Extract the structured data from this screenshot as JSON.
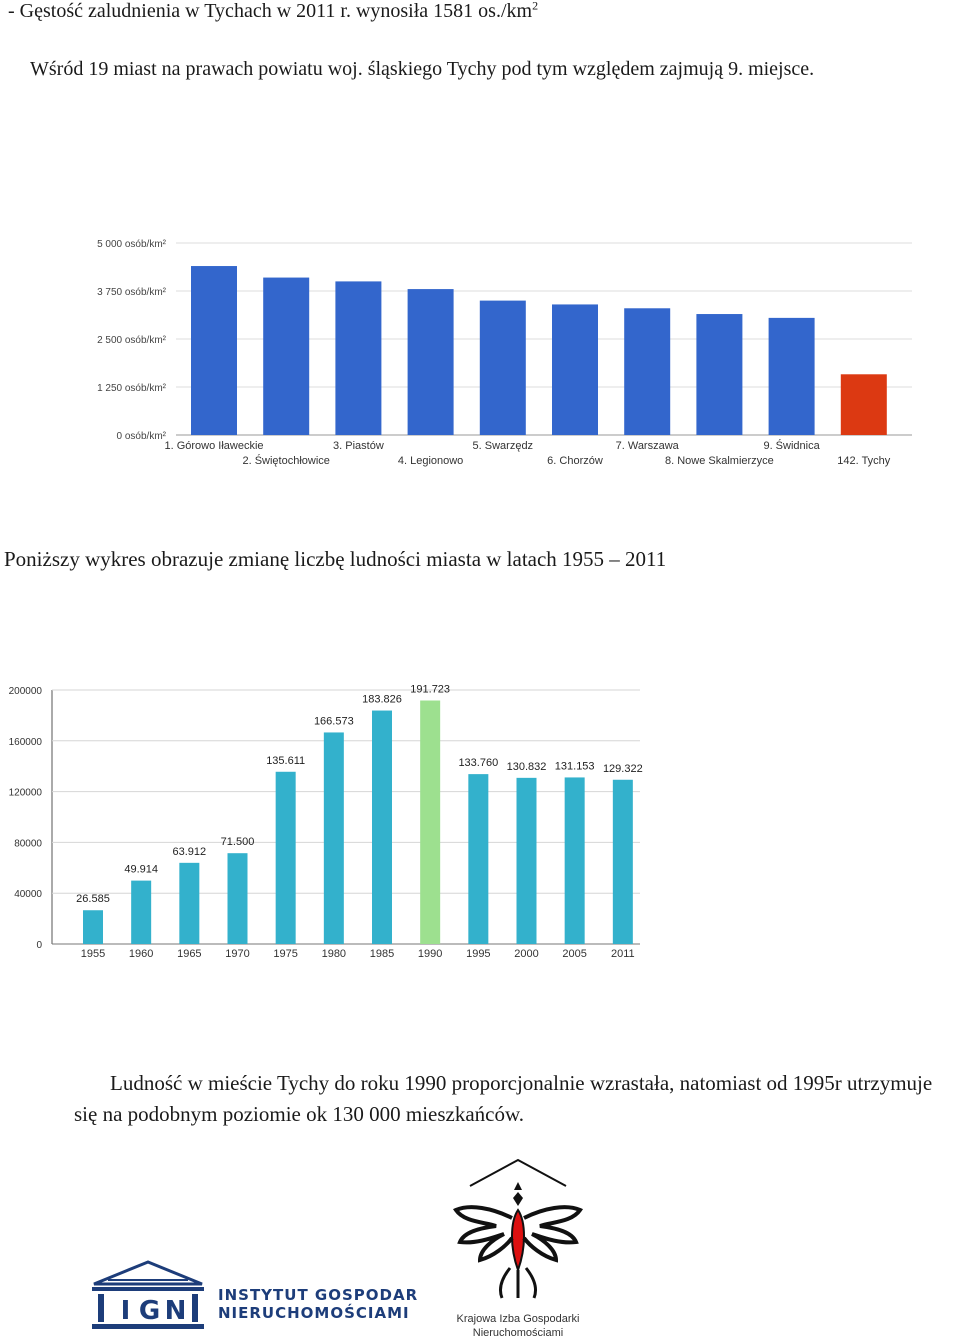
{
  "text": {
    "density_line_prefix": "- Gęstość zaludnienia w Tychach w 2011 r. wynosiła 1581 os./km",
    "density_line_sup": "2",
    "ranking_line": "Wśród 19 miast na prawach powiatu woj. śląskiego Tychy pod tym względem zajmują 9. miejsce.",
    "population_caption": "Poniższy wykres obrazuje zmianę liczbę ludności miasta w latach 1955 – 2011",
    "conclusion": "Ludność w mieście Tychy do roku 1990 proporcjonalnie wzrastała, natomiast od 1995r utrzymuje się na podobnym poziomie ok 130 000 mieszkańców."
  },
  "logos": {
    "ign": {
      "letters": "IGN",
      "line1": "Instytut Gospodarki",
      "line2": "Nieruchomościami"
    },
    "kign": {
      "line1": "Krajowa Izba Gospodarki",
      "line2": "Nieruchomościami"
    }
  },
  "chart_data": [
    {
      "type": "bar",
      "ylim": [
        0,
        5000
      ],
      "yticks": [
        "0 osób/km²",
        "1 250 osób/km²",
        "2 500 osób/km²",
        "3 750 osób/km²",
        "5 000 osób/km²"
      ],
      "categories": [
        "1. Górowo Iławeckie",
        "2. Świętochłowice",
        "3. Piastów",
        "4. Legionowo",
        "5. Swarzędz",
        "6. Chorzów",
        "7. Warszawa",
        "8. Nowe Skalmierzyce",
        "9. Świdnica",
        "142. Tychy"
      ],
      "values": [
        4400,
        4100,
        4000,
        3800,
        3500,
        3400,
        3300,
        3150,
        3050,
        1581
      ],
      "colors": [
        "#3366cc",
        "#3366cc",
        "#3366cc",
        "#3366cc",
        "#3366cc",
        "#3366cc",
        "#3366cc",
        "#3366cc",
        "#3366cc",
        "#dc3912"
      ],
      "grid": true
    },
    {
      "type": "bar",
      "ylim": [
        0,
        200000
      ],
      "yticks": [
        "0",
        "40000",
        "80000",
        "120000",
        "160000",
        "200000"
      ],
      "categories": [
        "1955",
        "1960",
        "1965",
        "1970",
        "1975",
        "1980",
        "1985",
        "1990",
        "1995",
        "2000",
        "2005",
        "2011"
      ],
      "values": [
        26585,
        49914,
        63912,
        71500,
        135611,
        166573,
        183826,
        191723,
        133760,
        130832,
        131153,
        129322
      ],
      "data_labels": [
        "26.585",
        "49.914",
        "63.912",
        "71.500",
        "135.611",
        "166.573",
        "183.826",
        "191.723",
        "133.760",
        "130.832",
        "131.153",
        "129.322"
      ],
      "colors": [
        "#33b1cc",
        "#33b1cc",
        "#33b1cc",
        "#33b1cc",
        "#33b1cc",
        "#33b1cc",
        "#33b1cc",
        "#9de08f",
        "#33b1cc",
        "#33b1cc",
        "#33b1cc",
        "#33b1cc"
      ],
      "grid": true
    }
  ]
}
